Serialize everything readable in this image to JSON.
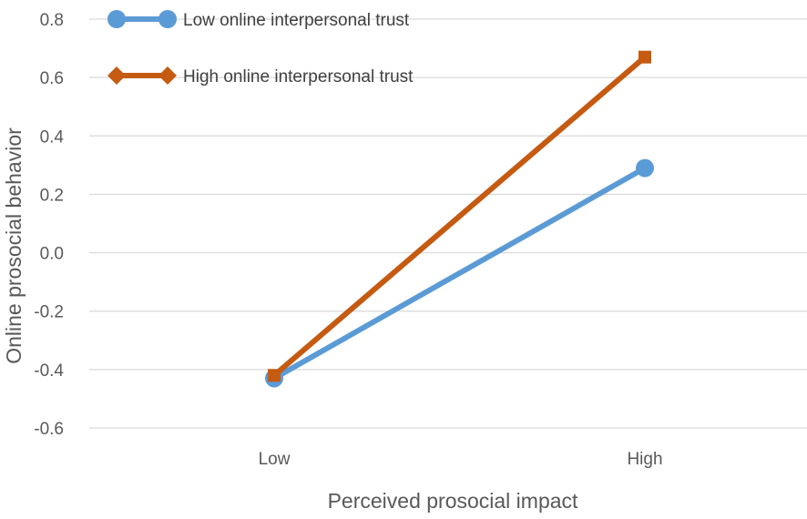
{
  "chart_data": {
    "type": "line",
    "categories": [
      "Low",
      "High"
    ],
    "series": [
      {
        "name": "Low online interpersonal trust",
        "values": [
          -0.43,
          0.29
        ],
        "color": "#5B9BD5",
        "marker": "circle"
      },
      {
        "name": "High online interpersonal trust",
        "values": [
          -0.42,
          0.67
        ],
        "color": "#C55A11",
        "marker": "diamond"
      }
    ],
    "xlabel": "Perceived prosocial impact",
    "ylabel": "Online prosocial behavior",
    "ylim": [
      -0.6,
      0.8
    ],
    "yticks": [
      "-0.6",
      "-0.4",
      "-0.2",
      "0.0",
      "0.2",
      "0.4",
      "0.6",
      "0.8"
    ],
    "grid": true,
    "legend": "top-left"
  }
}
